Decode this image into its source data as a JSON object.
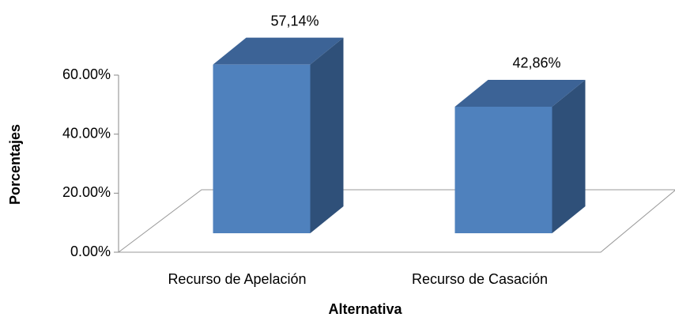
{
  "chart_data": {
    "type": "bar3d",
    "categories": [
      "Recurso de Apelación",
      "Recurso de Casación"
    ],
    "values": [
      57.14,
      42.86
    ],
    "value_labels": [
      "57,14%",
      "42,86%"
    ],
    "color": "#4f81bd",
    "xlabel": "Alternativa",
    "ylabel": "Porcentajes",
    "ylim": [
      0,
      60
    ],
    "yticks": [
      {
        "value": 0,
        "label": "0.00%"
      },
      {
        "value": 20,
        "label": "20.00%"
      },
      {
        "value": 40,
        "label": "40.00%"
      },
      {
        "value": 60,
        "label": "60.00%"
      }
    ]
  }
}
